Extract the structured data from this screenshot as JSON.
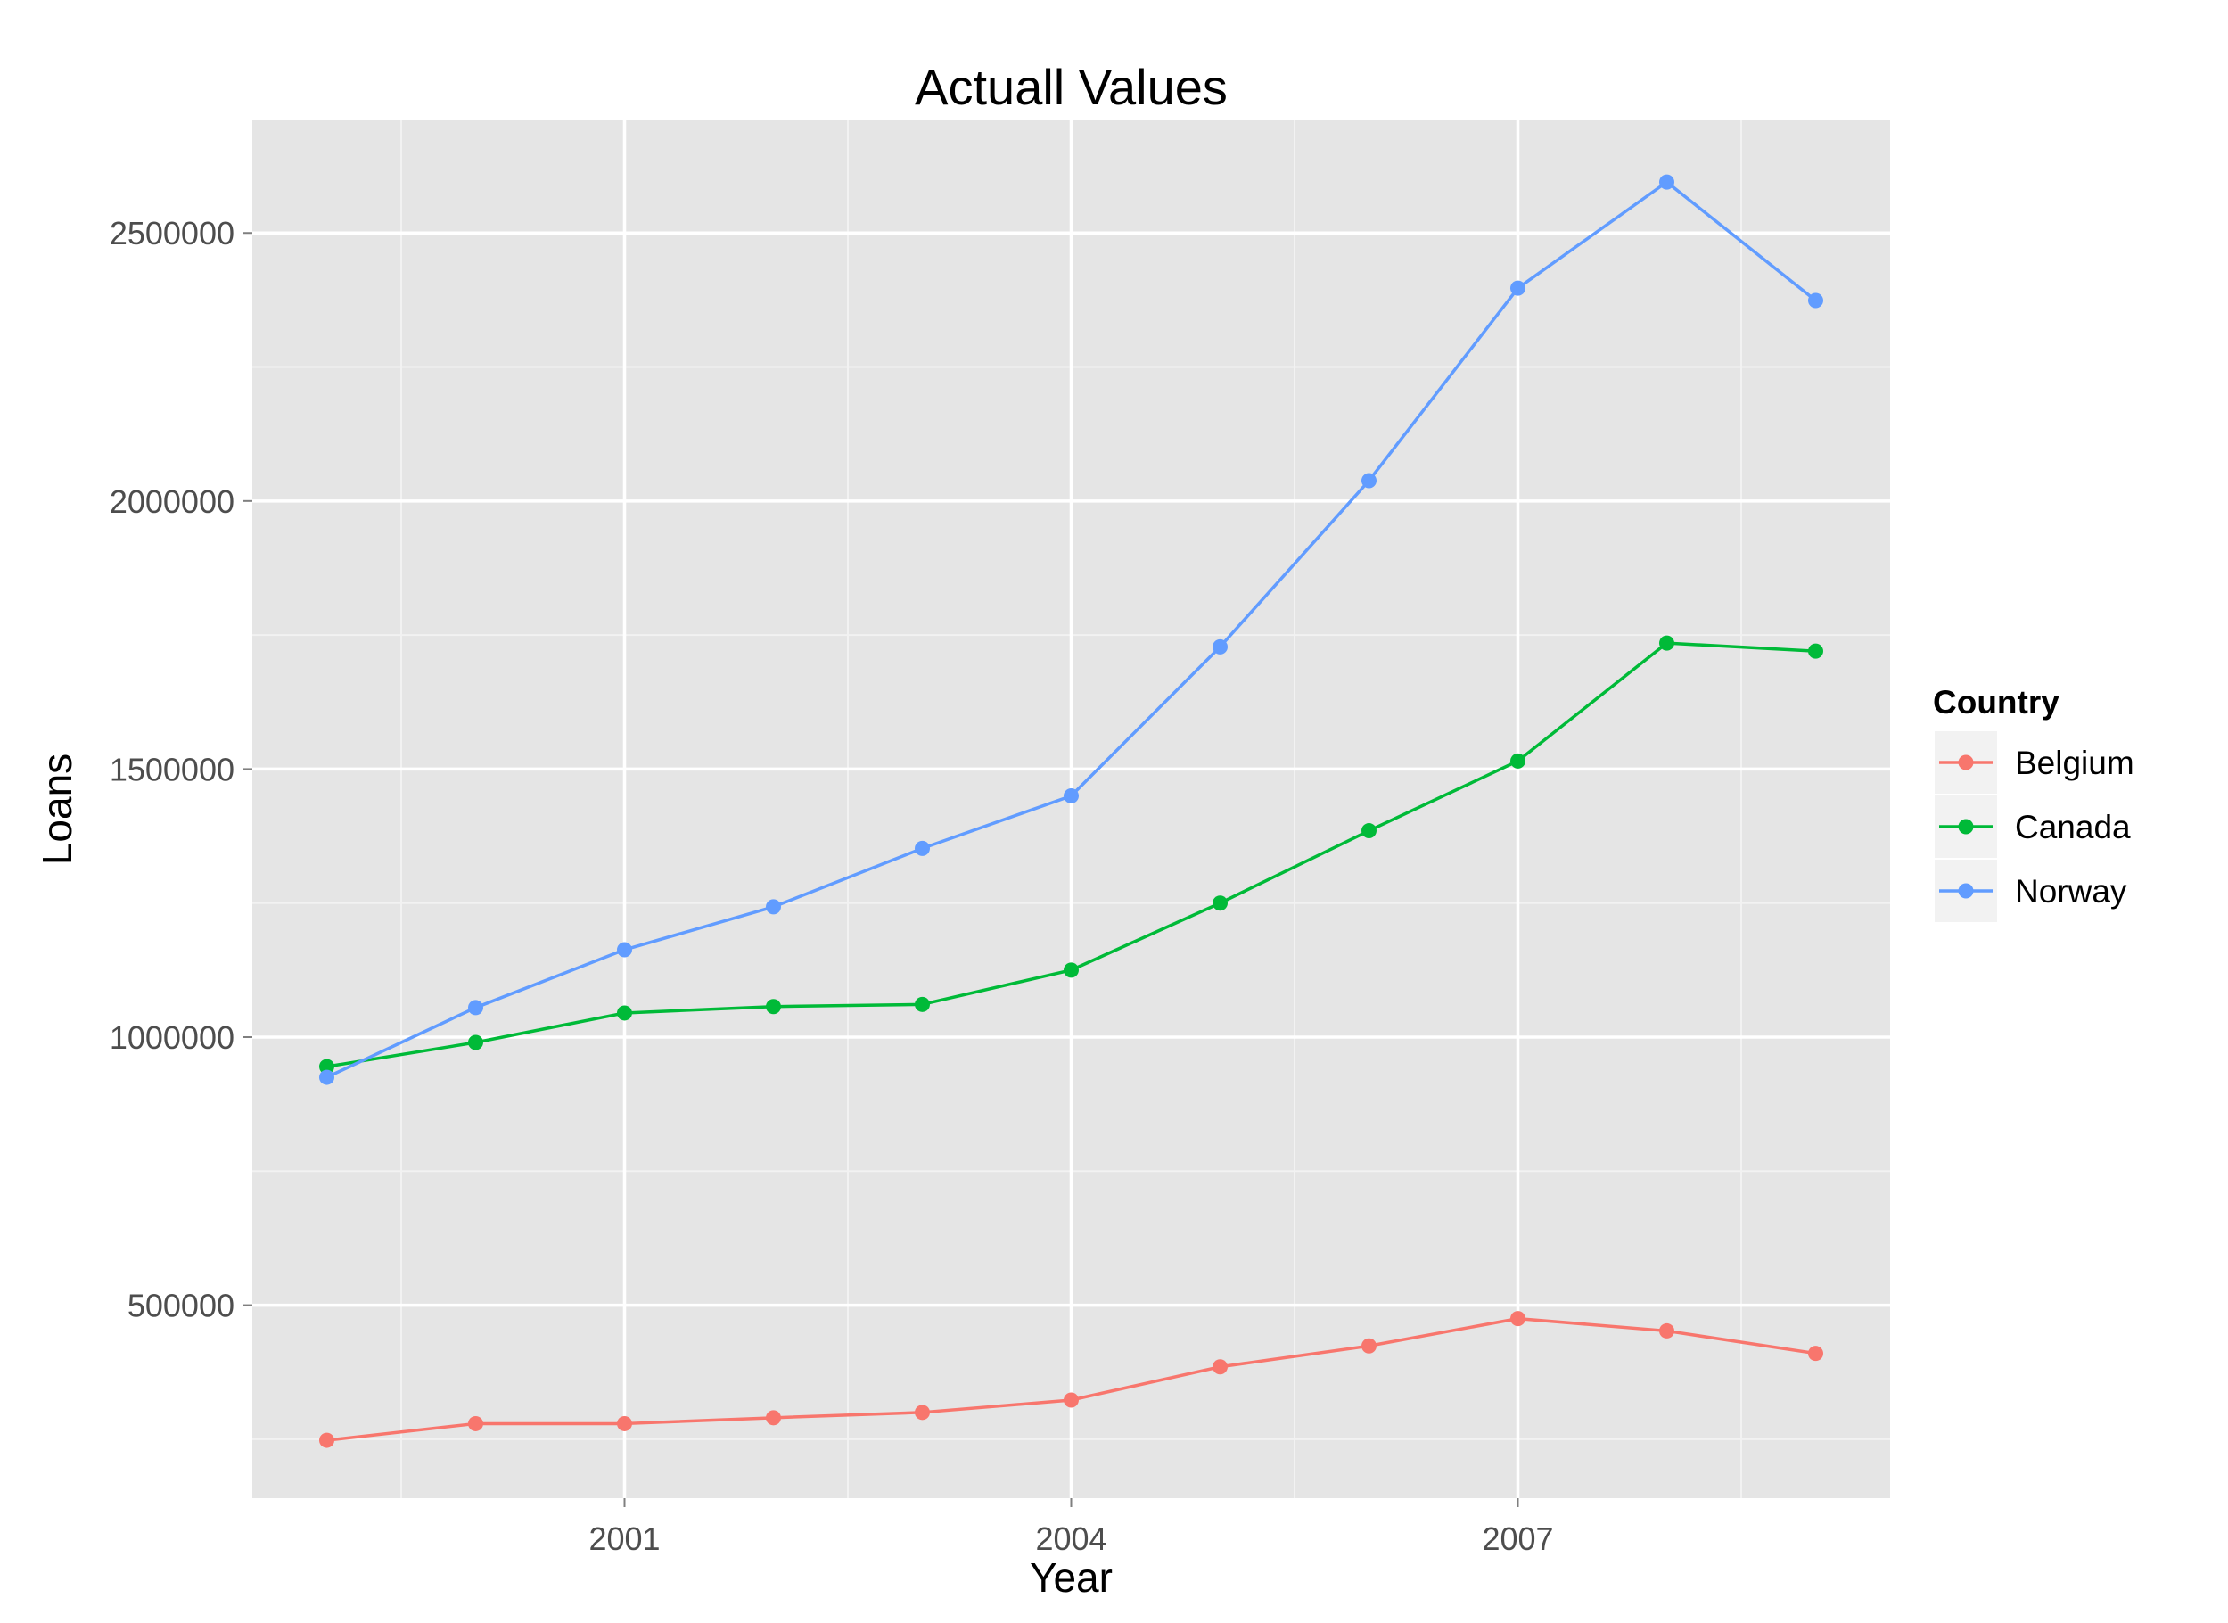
{
  "chart_data": {
    "type": "line",
    "title": "Actuall Values",
    "xlabel": "Year",
    "ylabel": "Loans",
    "x": [
      1999,
      2000,
      2001,
      2002,
      2003,
      2004,
      2005,
      2006,
      2007,
      2008,
      2009
    ],
    "xlim": [
      1998.5,
      2009.5
    ],
    "ylim": [
      140000,
      2710000
    ],
    "x_ticks": [
      2001,
      2004,
      2007
    ],
    "x_tick_labels": [
      "2001",
      "2004",
      "2007"
    ],
    "y_ticks": [
      500000,
      1000000,
      1500000,
      2000000,
      2500000
    ],
    "y_tick_labels": [
      "500000",
      "1000000",
      "1500000",
      "2000000",
      "2500000"
    ],
    "grid": true,
    "panel_background": "#E5E5E5",
    "legend": {
      "title": "Country",
      "position": "right"
    },
    "series": [
      {
        "name": "Belgium",
        "color": "#F8766D",
        "values": [
          248000,
          279000,
          279000,
          290000,
          300000,
          323000,
          385000,
          424000,
          475000,
          452000,
          410000
        ]
      },
      {
        "name": "Canada",
        "color": "#00BA38",
        "values": [
          945000,
          990000,
          1045000,
          1057000,
          1061000,
          1125000,
          1250000,
          1385000,
          1515000,
          1735000,
          1720000
        ]
      },
      {
        "name": "Norway",
        "color": "#619CFF",
        "values": [
          925000,
          1055000,
          1163000,
          1243000,
          1352000,
          1450000,
          1728000,
          2038000,
          2397000,
          2595000,
          2374000
        ]
      }
    ]
  }
}
